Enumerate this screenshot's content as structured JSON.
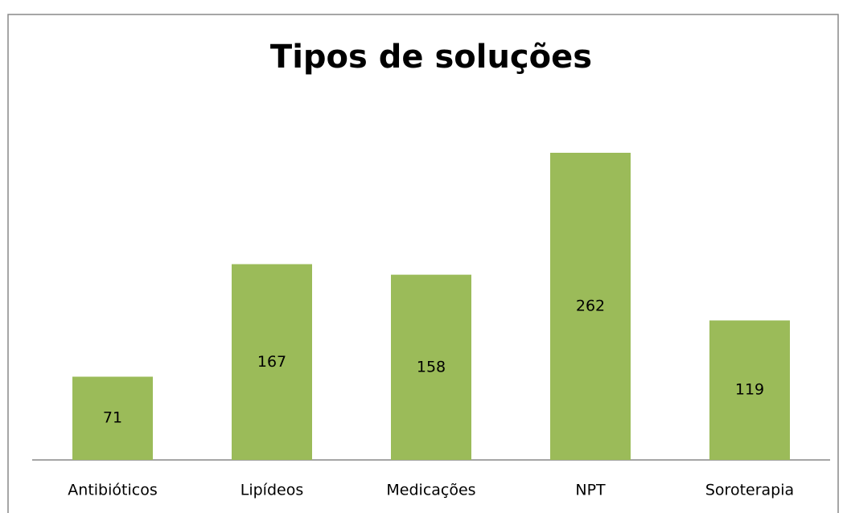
{
  "chart_data": {
    "type": "bar",
    "title": "Tipos de soluções",
    "categories": [
      "Antibióticos",
      "Lipídeos",
      "Medicações",
      "NPT",
      "Soroterapia"
    ],
    "values": [
      71,
      167,
      158,
      262,
      119
    ],
    "color": "#9bbb59"
  }
}
